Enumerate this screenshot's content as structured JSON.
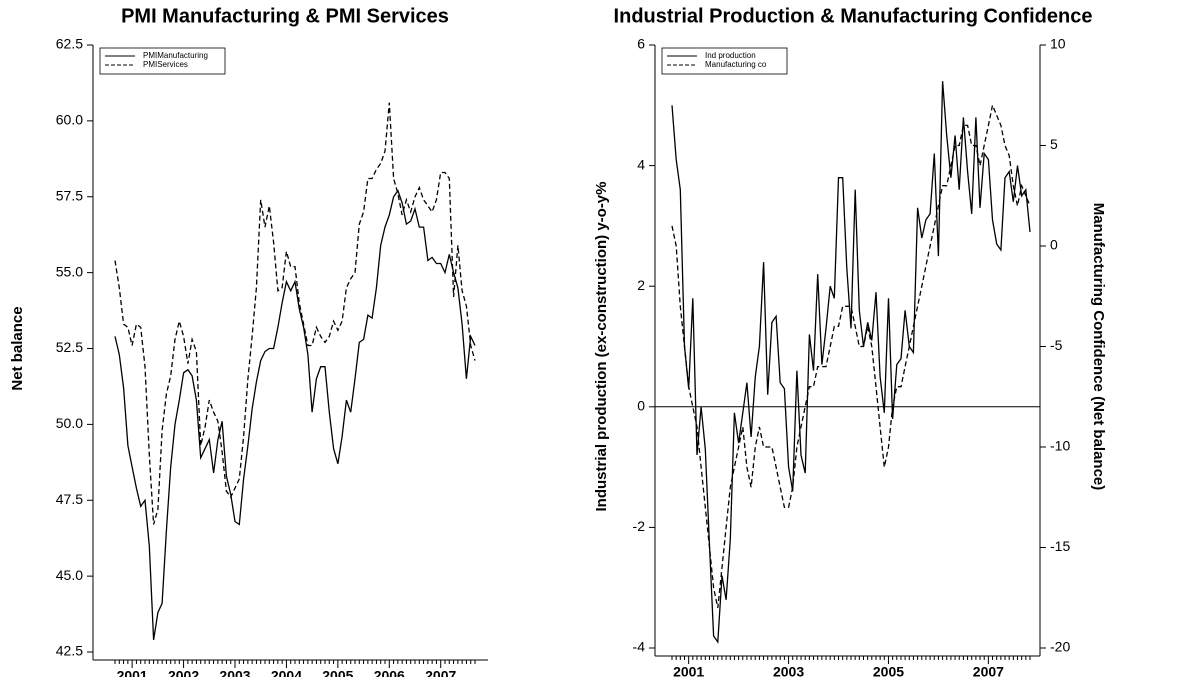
{
  "chart_data": [
    {
      "type": "line",
      "title": "PMI Manufacturing & PMI Services",
      "ylabel": "Net balance",
      "categories": [
        null,
        null,
        null,
        null,
        "2001",
        null,
        null,
        null,
        null,
        null,
        null,
        null,
        null,
        null,
        null,
        null,
        "2002",
        null,
        null,
        null,
        null,
        null,
        null,
        null,
        null,
        null,
        null,
        null,
        "2003",
        null,
        null,
        null,
        null,
        null,
        null,
        null,
        null,
        null,
        null,
        null,
        "2004",
        null,
        null,
        null,
        null,
        null,
        null,
        null,
        null,
        null,
        null,
        null,
        "2005",
        null,
        null,
        null,
        null,
        null,
        null,
        null,
        null,
        null,
        null,
        null,
        "2006",
        null,
        null,
        null,
        null,
        null,
        null,
        null,
        null,
        null,
        null,
        null,
        "2007",
        null,
        null,
        null,
        null,
        null,
        null,
        null,
        null
      ],
      "series": [
        {
          "name": "PMIManufacturing",
          "color": "#000000",
          "dashed": false,
          "values": [
            52.9,
            52.3,
            51.2,
            49.3,
            48.6,
            47.9,
            47.3,
            47.5,
            46.0,
            42.9,
            43.8,
            44.1,
            46.5,
            48.6,
            50.0,
            50.8,
            51.7,
            51.8,
            51.6,
            50.8,
            48.9,
            49.2,
            49.5,
            48.4,
            49.5,
            50.1,
            48.3,
            47.7,
            46.8,
            46.7,
            48.2,
            49.3,
            50.5,
            51.4,
            52.1,
            52.4,
            52.5,
            52.5,
            53.2,
            54.0,
            54.7,
            54.4,
            54.7,
            53.8,
            53.2,
            52.3,
            50.4,
            51.5,
            51.9,
            51.9,
            50.4,
            49.2,
            48.7,
            49.6,
            50.8,
            50.4,
            51.5,
            52.7,
            52.8,
            53.6,
            53.5,
            54.5,
            55.9,
            56.5,
            56.9,
            57.5,
            57.7,
            57.3,
            56.6,
            56.7,
            57.1,
            56.5,
            56.5,
            55.4,
            55.5,
            55.3,
            55.3,
            55.0,
            55.6,
            55.0,
            54.5,
            53.3,
            51.5,
            52.9,
            52.6
          ]
        },
        {
          "name": "PMIServices",
          "color": "#000000",
          "dashed": true,
          "values": [
            55.4,
            54.5,
            53.3,
            53.2,
            52.6,
            53.3,
            53.2,
            51.9,
            49.0,
            46.7,
            47.2,
            49.8,
            51.0,
            51.6,
            52.8,
            53.4,
            52.9,
            52.0,
            52.8,
            52.4,
            49.3,
            49.9,
            50.8,
            50.4,
            50.1,
            49.1,
            47.8,
            47.6,
            47.9,
            48.2,
            49.6,
            51.5,
            52.9,
            54.5,
            57.4,
            56.5,
            57.2,
            56.0,
            54.4,
            54.5,
            55.7,
            55.2,
            55.2,
            54.0,
            53.3,
            52.6,
            52.6,
            53.2,
            52.9,
            52.7,
            52.9,
            53.4,
            53.1,
            53.4,
            54.5,
            54.8,
            55.0,
            56.6,
            57.0,
            58.1,
            58.1,
            58.4,
            58.6,
            59.0,
            60.6,
            58.1,
            57.6,
            56.9,
            57.4,
            57.0,
            57.5,
            57.8,
            57.4,
            57.2,
            57.0,
            57.4,
            58.3,
            58.3,
            58.1,
            54.2,
            55.9,
            54.4,
            53.9,
            52.6,
            52.1
          ]
        }
      ],
      "ylim": [
        42.5,
        62.5
      ],
      "yticks": [
        42.5,
        {
          "value": 45,
          "label": "45.0"
        },
        47.5,
        {
          "value": 50,
          "label": "50.0"
        },
        52.5,
        {
          "value": 55,
          "label": "55.0"
        },
        57.5,
        {
          "value": 60,
          "label": "60.0"
        },
        62.5
      ],
      "legend": "upper left",
      "grid": false
    },
    {
      "type": "line",
      "title": "Industrial Production & Manufacturing Confidence",
      "ylabel": "Industrial production (ex-construction) y-o-y%",
      "y2label": "Manufacturing Confidence (Net balance)",
      "categories": [
        null,
        null,
        null,
        null,
        "2001",
        null,
        null,
        null,
        null,
        null,
        null,
        null,
        null,
        null,
        null,
        null,
        null,
        null,
        null,
        null,
        null,
        null,
        null,
        null,
        null,
        null,
        null,
        null,
        "2003",
        null,
        null,
        null,
        null,
        null,
        null,
        null,
        null,
        null,
        null,
        null,
        null,
        null,
        null,
        null,
        null,
        null,
        null,
        null,
        null,
        null,
        null,
        null,
        "2005",
        null,
        null,
        null,
        null,
        null,
        null,
        null,
        null,
        null,
        null,
        null,
        null,
        null,
        null,
        null,
        null,
        null,
        null,
        null,
        null,
        null,
        null,
        null,
        "2007",
        null,
        null,
        null,
        null,
        null,
        null,
        null,
        null,
        null,
        null
      ],
      "series": [
        {
          "name": "Ind production",
          "color": "#000000",
          "dashed": false,
          "axis": "y",
          "values": [
            5.0,
            4.1,
            3.6,
            1.0,
            0.3,
            1.8,
            -0.8,
            0.0,
            -0.7,
            -2.3,
            -3.8,
            -3.9,
            -2.8,
            -3.2,
            -2.2,
            -0.1,
            -0.6,
            -0.1,
            0.4,
            -0.5,
            0.5,
            1.0,
            2.4,
            0.2,
            1.4,
            1.5,
            0.4,
            0.3,
            -1.0,
            -1.4,
            0.6,
            -0.8,
            -1.1,
            1.2,
            0.6,
            2.2,
            0.7,
            1.3,
            2.0,
            1.8,
            3.8,
            3.8,
            2.3,
            1.3,
            3.6,
            1.6,
            1.0,
            1.4,
            1.1,
            1.9,
            0.5,
            -0.1,
            1.8,
            -0.2,
            0.7,
            0.8,
            1.6,
            1.0,
            0.9,
            3.3,
            2.8,
            3.1,
            3.2,
            4.2,
            2.5,
            5.4,
            4.5,
            3.8,
            4.5,
            3.6,
            4.8,
            3.9,
            3.2,
            4.8,
            3.3,
            4.2,
            4.1,
            3.1,
            2.7,
            2.6,
            3.8,
            3.9,
            3.4,
            4.0,
            3.5,
            3.6,
            2.9
          ]
        },
        {
          "name": "Manufacturing co",
          "color": "#000000",
          "dashed": true,
          "axis": "y2",
          "values": [
            1,
            0,
            -3,
            -5,
            -7,
            -8,
            -9,
            -11,
            -13,
            -15,
            -17,
            -18,
            -16,
            -14,
            -12,
            -11,
            -10,
            -9,
            -11,
            -12,
            -10,
            -9,
            -10,
            -10,
            -10,
            -11,
            -12,
            -13,
            -13,
            -12,
            -10,
            -9,
            -8,
            -7,
            -7,
            -6,
            -6,
            -6,
            -5,
            -4,
            -4,
            -3,
            -3,
            -3,
            -4,
            -5,
            -5,
            -4,
            -5,
            -7,
            -9,
            -11,
            -10,
            -8,
            -7,
            -7,
            -6,
            -5,
            -4,
            -3,
            -2,
            -1,
            0,
            1,
            2,
            3,
            3,
            4,
            5,
            5,
            6,
            6,
            5,
            5,
            4,
            5,
            6,
            7,
            6.5,
            6,
            5,
            4.5,
            3,
            2,
            3,
            2.5,
            2
          ]
        }
      ],
      "ylim": [
        -4,
        6
      ],
      "yticks": [
        -4,
        -2,
        0,
        2,
        4,
        6
      ],
      "y2lim": [
        -20,
        10
      ],
      "y2ticks": [
        -20,
        -15,
        -10,
        -5,
        0,
        5,
        10
      ],
      "zero_line": true,
      "legend": "upper left",
      "grid": false
    }
  ]
}
